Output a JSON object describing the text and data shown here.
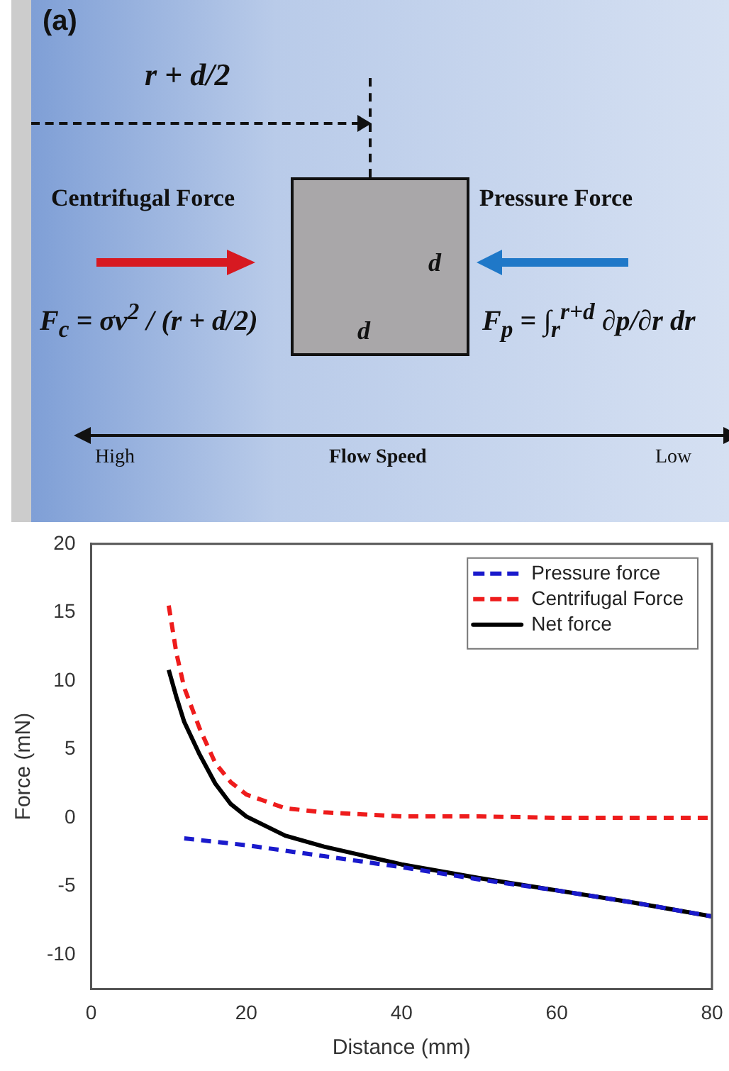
{
  "chart_data": [
    {
      "type": "other",
      "title": "(a)",
      "annotations": [
        "r + d/2",
        "Centrifugal Force",
        "Pressure Force",
        "d",
        "d",
        "F$_{c}$ = σv$^{2}$ / (r + d/2)",
        "F$_{p}$ = ∫$_{r}$$^{r+d}$ ∂p/∂r dr",
        "High",
        "Flow Speed",
        "Low"
      ]
    },
    {
      "type": "line",
      "xlabel": "Distance (mm)",
      "ylabel": "Force (mN)",
      "xlim": [
        0,
        80
      ],
      "xticks": [
        0,
        20,
        40,
        60,
        80
      ],
      "ylim": [
        -12.5,
        20
      ],
      "yticks": [
        -10,
        -5,
        0,
        5,
        10,
        15,
        20
      ],
      "grid": false,
      "legend": "top right",
      "marker": "none",
      "series": [
        {
          "name": "Pressure force",
          "color": "#1a1acc",
          "line_style": "dashed",
          "x": [
            12,
            20,
            30,
            40,
            50,
            60,
            70,
            80
          ],
          "values": [
            -1.5,
            -2.0,
            -2.8,
            -3.6,
            -4.5,
            -5.3,
            -6.2,
            -7.2
          ]
        },
        {
          "name": "Centrifugal Force",
          "color": "#ee1c1c",
          "line_style": "dashed",
          "x": [
            10,
            11,
            12,
            14,
            16,
            18,
            20,
            25,
            30,
            40,
            50,
            60,
            80
          ],
          "values": [
            15.5,
            12,
            9.5,
            6.5,
            4,
            2.6,
            1.7,
            0.7,
            0.4,
            0.1,
            0.1,
            0,
            0
          ]
        },
        {
          "name": "Net force",
          "color": "#000000",
          "line_style": "solid",
          "x": [
            10,
            11,
            12,
            14,
            16,
            18,
            20,
            25,
            30,
            40,
            50,
            60,
            70,
            80
          ],
          "values": [
            10.8,
            8.8,
            7,
            4.6,
            2.5,
            1.0,
            0.1,
            -1.3,
            -2.1,
            -3.4,
            -4.4,
            -5.3,
            -6.2,
            -7.2
          ]
        }
      ]
    }
  ]
}
